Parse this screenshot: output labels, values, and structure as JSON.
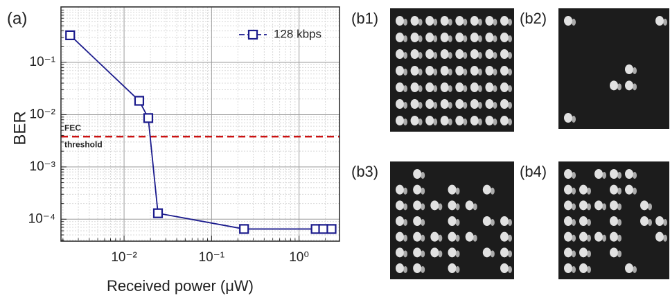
{
  "chart_data": {
    "type": "line",
    "title": "(a)",
    "x_label": "Received power (μW)",
    "y_label": "BER",
    "xscale": "log",
    "yscale": "log",
    "xlim": [
      0.0019,
      2.9
    ],
    "ylim": [
      3.8e-05,
      1.15
    ],
    "xticks": [
      {
        "value": 0.01,
        "label": "10⁻²"
      },
      {
        "value": 0.1,
        "label": "10⁻¹"
      },
      {
        "value": 1,
        "label": "10⁰"
      }
    ],
    "yticks": [
      {
        "value": 0.0001,
        "label": "10⁻⁴"
      },
      {
        "value": 0.001,
        "label": "10⁻³"
      },
      {
        "value": 0.01,
        "label": "10⁻²"
      },
      {
        "value": 0.1,
        "label": "10⁻¹"
      }
    ],
    "xminorticks": [
      0.002,
      0.003,
      0.004,
      0.005,
      0.006,
      0.007,
      0.008,
      0.009,
      0.02,
      0.03,
      0.04,
      0.05,
      0.06,
      0.07,
      0.08,
      0.09,
      0.2,
      0.3,
      0.4,
      0.5,
      0.6,
      0.7,
      0.8,
      0.9,
      2
    ],
    "yminorticks": [
      4e-05,
      5e-05,
      6e-05,
      7e-05,
      8e-05,
      9e-05,
      0.0002,
      0.0003,
      0.0004,
      0.0005,
      0.0006,
      0.0007,
      0.0008,
      0.0009,
      0.002,
      0.003,
      0.004,
      0.005,
      0.006,
      0.007,
      0.008,
      0.009,
      0.02,
      0.03,
      0.04,
      0.05,
      0.06,
      0.07,
      0.08,
      0.09,
      0.2,
      0.3,
      0.4,
      0.5,
      0.6,
      0.7,
      0.8,
      0.9,
      1
    ],
    "grid": true,
    "legend": "upper right",
    "x": [
      0.00242,
      0.0149,
      0.0189,
      0.0244,
      0.235,
      1.55,
      1.89,
      2.35
    ],
    "series": [
      {
        "name": "128 kbps",
        "color": "#1a1a8c",
        "values": [
          0.33,
          0.0184,
          0.0086,
          0.00013,
          6.5e-05,
          6.5e-05,
          6.5e-05,
          6.5e-05
        ]
      }
    ],
    "threshold": {
      "value": 0.0038,
      "text": [
        "FEC",
        "threshold"
      ],
      "color": "#cc1111"
    }
  },
  "panels": [
    {
      "label": "(b1)"
    },
    {
      "label": "(b2)"
    },
    {
      "label": "(b3)"
    },
    {
      "label": "(b4)"
    }
  ]
}
